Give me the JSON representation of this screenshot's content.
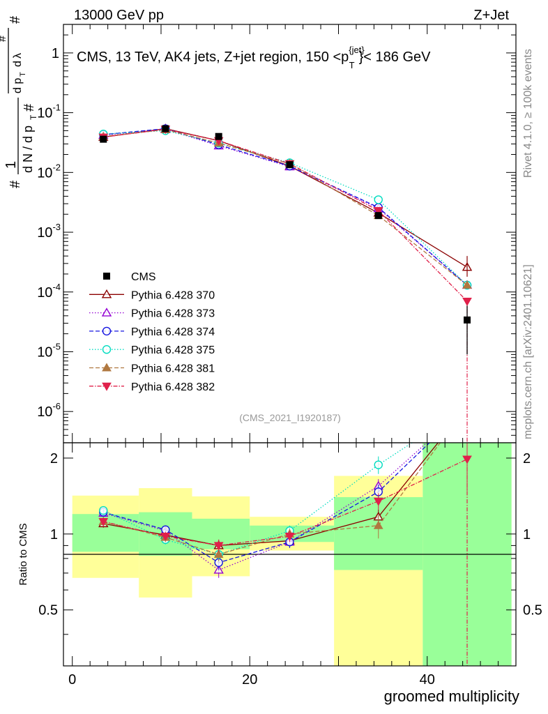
{
  "header": {
    "left": "13000 GeV pp",
    "right": "Z+Jet"
  },
  "side_labels": {
    "rivet": "Rivet 4.1.0, ≥ 100k events",
    "mcplots": "mcplots.cern.ch [arXiv:2401.10621]"
  },
  "main_title": "CMS, 13 TeV, AK4 jets, Z+jet region, 150 <p",
  "main_title_sup": "{jet}",
  "main_title_sub": "T",
  "main_title_tail": "}< 186 GeV",
  "ylabel_main": "1/N dN/dp_T dλ",
  "watermark": "(CMS_2021_I1920187)",
  "ratio_ylabel": "Ratio to CMS",
  "chart_data": {
    "type": "line",
    "title": "CMS, 13 TeV, AK4 jets, Z+jet region, 150 < p_T^{jet} < 186 GeV",
    "xlabel": "groomed multiplicity",
    "ylabel": "1/N dN/dp_T dλ",
    "xlim": [
      -1,
      50
    ],
    "ylim_main": [
      3e-07,
      3
    ],
    "yscale_main": "log",
    "ylim_ratio": [
      0.3,
      2.3
    ],
    "yscale_ratio": "log",
    "x_ticks": [
      0,
      20,
      40
    ],
    "x_ticklabels": [
      "0",
      "20",
      "40"
    ],
    "y_main_ticks": [
      1e-06,
      1e-05,
      0.0001,
      0.001,
      0.01,
      0.1,
      1
    ],
    "y_main_ticklabels": [
      [
        "10",
        "-6"
      ],
      [
        "10",
        "-5"
      ],
      [
        "10",
        "-4"
      ],
      [
        "10",
        "-3"
      ],
      [
        "10",
        "-2"
      ],
      [
        "10",
        "-1"
      ],
      [
        "1",
        ""
      ]
    ],
    "y_ratio_ticks": [
      0.5,
      1,
      2
    ],
    "y_ratio_ticklabels": [
      "0.5",
      "1",
      "2"
    ],
    "bins": [
      [
        0,
        7.5
      ],
      [
        7.5,
        13.5
      ],
      [
        13.5,
        20
      ],
      [
        20,
        29.5
      ],
      [
        29.5,
        39.5
      ],
      [
        39.5,
        49.5
      ]
    ],
    "x": [
      3.5,
      10.5,
      16.5,
      24.5,
      34.5,
      44.5
    ],
    "band_green": [
      [
        0.85,
        1.2
      ],
      [
        0.82,
        1.22
      ],
      [
        0.87,
        1.15
      ],
      [
        0.93,
        1.08
      ],
      [
        0.72,
        1.4
      ],
      [
        0.3,
        2.3
      ]
    ],
    "band_yellow": [
      [
        0.67,
        1.42
      ],
      [
        0.56,
        1.52
      ],
      [
        0.68,
        1.41
      ],
      [
        0.86,
        1.17
      ],
      [
        0.3,
        1.7
      ],
      [
        0.3,
        2.3
      ]
    ],
    "cms": {
      "name": "CMS",
      "color": "#000000",
      "values": [
        0.036,
        0.054,
        0.04,
        0.0135,
        0.0019,
        3.4e-05
      ],
      "errors": [
        0.003,
        0.003,
        0.003,
        0.001,
        0.0002,
        2.5e-05
      ]
    },
    "series": [
      {
        "name": "Pythia 6.428 370",
        "color": "#8b0000",
        "dash": "",
        "marker": "tri-up-open",
        "values": [
          0.039,
          0.054,
          0.034,
          0.0128,
          0.0021,
          0.00026
        ],
        "ratio": [
          1.1,
          0.99,
          0.9,
          0.94,
          1.17,
          3.2
        ],
        "ratio_err": [
          0.04,
          0.04,
          0.05,
          0.05,
          0.08,
          0.5
        ]
      },
      {
        "name": "Pythia 6.428 373",
        "color": "#9400d3",
        "dash": "1.5,2.5",
        "marker": "tri-up-open",
        "values": [
          0.042,
          0.053,
          0.028,
          0.0125,
          0.0025,
          0.00013
        ],
        "ratio": [
          1.21,
          1.03,
          0.72,
          0.93,
          1.55,
          3.2
        ],
        "ratio_err": [
          0.04,
          0.04,
          0.05,
          0.05,
          0.1,
          0.5
        ]
      },
      {
        "name": "Pythia 6.428 374",
        "color": "#1515e0",
        "dash": "6,3",
        "marker": "circle-open",
        "values": [
          0.043,
          0.054,
          0.029,
          0.0128,
          0.0026,
          0.00013
        ],
        "ratio": [
          1.22,
          1.04,
          0.77,
          0.93,
          1.47,
          3.2
        ],
        "ratio_err": [
          0.04,
          0.04,
          0.05,
          0.05,
          0.1,
          0.5
        ]
      },
      {
        "name": "Pythia 6.428 375",
        "color": "#00dcc0",
        "dash": "1.5,2.5",
        "marker": "circle-open",
        "values": [
          0.044,
          0.05,
          0.031,
          0.0145,
          0.0035,
          0.00013
        ],
        "ratio": [
          1.24,
          0.95,
          0.83,
          1.03,
          1.88,
          3.2
        ],
        "ratio_err": [
          0.04,
          0.04,
          0.05,
          0.05,
          0.15,
          0.5
        ]
      },
      {
        "name": "Pythia 6.428 381",
        "color": "#b07840",
        "dash": "6,3",
        "marker": "tri-up-filled",
        "values": [
          0.04,
          0.052,
          0.031,
          0.014,
          0.0019,
          0.00013
        ],
        "ratio": [
          1.12,
          0.97,
          0.83,
          1.0,
          1.08,
          3.2
        ],
        "ratio_err": [
          0.04,
          0.04,
          0.05,
          0.05,
          0.12,
          0.5
        ]
      },
      {
        "name": "Pythia 6.428 382",
        "color": "#e0204a",
        "dash": "6,2,1.5,2",
        "marker": "tri-down-filled",
        "values": [
          0.039,
          0.053,
          0.034,
          0.014,
          0.0023,
          7e-05
        ],
        "ratio": [
          1.12,
          0.98,
          0.9,
          0.98,
          1.35,
          1.98
        ],
        "ratio_err": [
          0.04,
          0.04,
          0.05,
          0.05,
          0.1,
          0.5
        ]
      }
    ]
  }
}
